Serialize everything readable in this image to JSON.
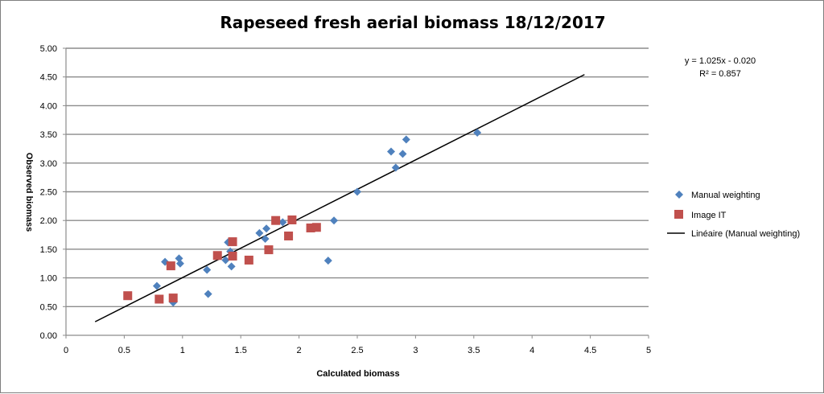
{
  "chart_data": {
    "type": "scatter",
    "title": "Rapeseed fresh aerial biomass 18/12/2017",
    "xlabel": "Calculated biomass",
    "ylabel": "Observed biomass",
    "xlim": [
      0,
      5
    ],
    "ylim": [
      0,
      5
    ],
    "x_ticks": [
      "0",
      "0.5",
      "1",
      "1.5",
      "2",
      "2.5",
      "3",
      "3.5",
      "4",
      "4.5",
      "5"
    ],
    "y_ticks": [
      "0.00",
      "0.50",
      "1.00",
      "1.50",
      "2.00",
      "2.50",
      "3.00",
      "3.50",
      "4.00",
      "4.50",
      "5.00"
    ],
    "grid": "horizontal",
    "legend_position": "right",
    "series": [
      {
        "name": "Manual weighting",
        "marker": "diamond",
        "color": "#4f81bd",
        "points": [
          [
            0.78,
            0.86
          ],
          [
            0.85,
            1.28
          ],
          [
            0.92,
            0.57
          ],
          [
            0.97,
            1.34
          ],
          [
            0.98,
            1.25
          ],
          [
            1.21,
            1.14
          ],
          [
            1.22,
            0.72
          ],
          [
            1.37,
            1.31
          ],
          [
            1.39,
            1.62
          ],
          [
            1.41,
            1.46
          ],
          [
            1.42,
            1.2
          ],
          [
            1.66,
            1.78
          ],
          [
            1.71,
            1.68
          ],
          [
            1.72,
            1.86
          ],
          [
            1.86,
            1.97
          ],
          [
            2.25,
            1.3
          ],
          [
            2.3,
            2.0
          ],
          [
            2.5,
            2.5
          ],
          [
            2.79,
            3.2
          ],
          [
            2.83,
            2.92
          ],
          [
            2.89,
            3.16
          ],
          [
            2.92,
            3.41
          ],
          [
            3.53,
            3.53
          ]
        ]
      },
      {
        "name": "Image IT",
        "marker": "square",
        "color": "#c0504d",
        "points": [
          [
            0.53,
            0.69
          ],
          [
            0.8,
            0.63
          ],
          [
            0.9,
            1.21
          ],
          [
            0.92,
            0.65
          ],
          [
            1.3,
            1.39
          ],
          [
            1.43,
            1.63
          ],
          [
            1.43,
            1.38
          ],
          [
            1.57,
            1.31
          ],
          [
            1.74,
            1.49
          ],
          [
            1.8,
            2.0
          ],
          [
            1.91,
            1.73
          ],
          [
            1.94,
            2.01
          ],
          [
            2.1,
            1.87
          ],
          [
            2.15,
            1.88
          ]
        ]
      }
    ],
    "trendline": {
      "name": "Linéaire (Manual weighting)",
      "color": "#000000",
      "x_range": [
        0.25,
        4.45
      ],
      "slope": 1.025,
      "intercept": -0.02
    },
    "annotations": [
      "y = 1.025x - 0.020",
      "R² = 0.857"
    ]
  }
}
